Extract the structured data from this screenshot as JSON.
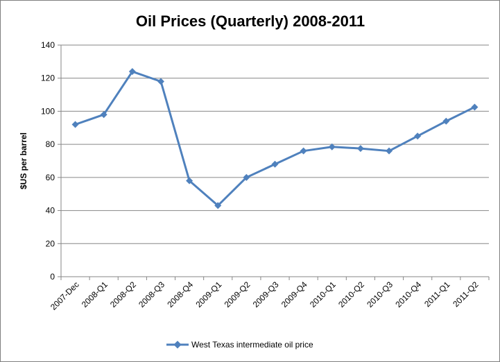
{
  "chart_data": {
    "type": "line",
    "title": "Oil Prices (Quarterly) 2008-2011",
    "xlabel": "",
    "ylabel": "$US per barrel",
    "ylim": [
      0,
      140
    ],
    "yticks": [
      0,
      20,
      40,
      60,
      80,
      100,
      120,
      140
    ],
    "grid": "horizontal",
    "legend_position": "bottom",
    "categories": [
      "2007-Dec",
      "2008-Q1",
      "2008-Q2",
      "2008-Q3",
      "2008-Q4",
      "2009-Q1",
      "2009-Q2",
      "2009-Q3",
      "2009-Q4",
      "2010-Q1",
      "2010-Q2",
      "2010-Q3",
      "2010-Q4",
      "2011-Q1",
      "2011-Q2"
    ],
    "series": [
      {
        "name": "West Texas intermediate oil price",
        "color": "#4f81bd",
        "marker": "diamond",
        "values": [
          92,
          98,
          124,
          118,
          58,
          43,
          60,
          68,
          76,
          78.5,
          77.5,
          76,
          85,
          94,
          102.5
        ]
      }
    ]
  }
}
